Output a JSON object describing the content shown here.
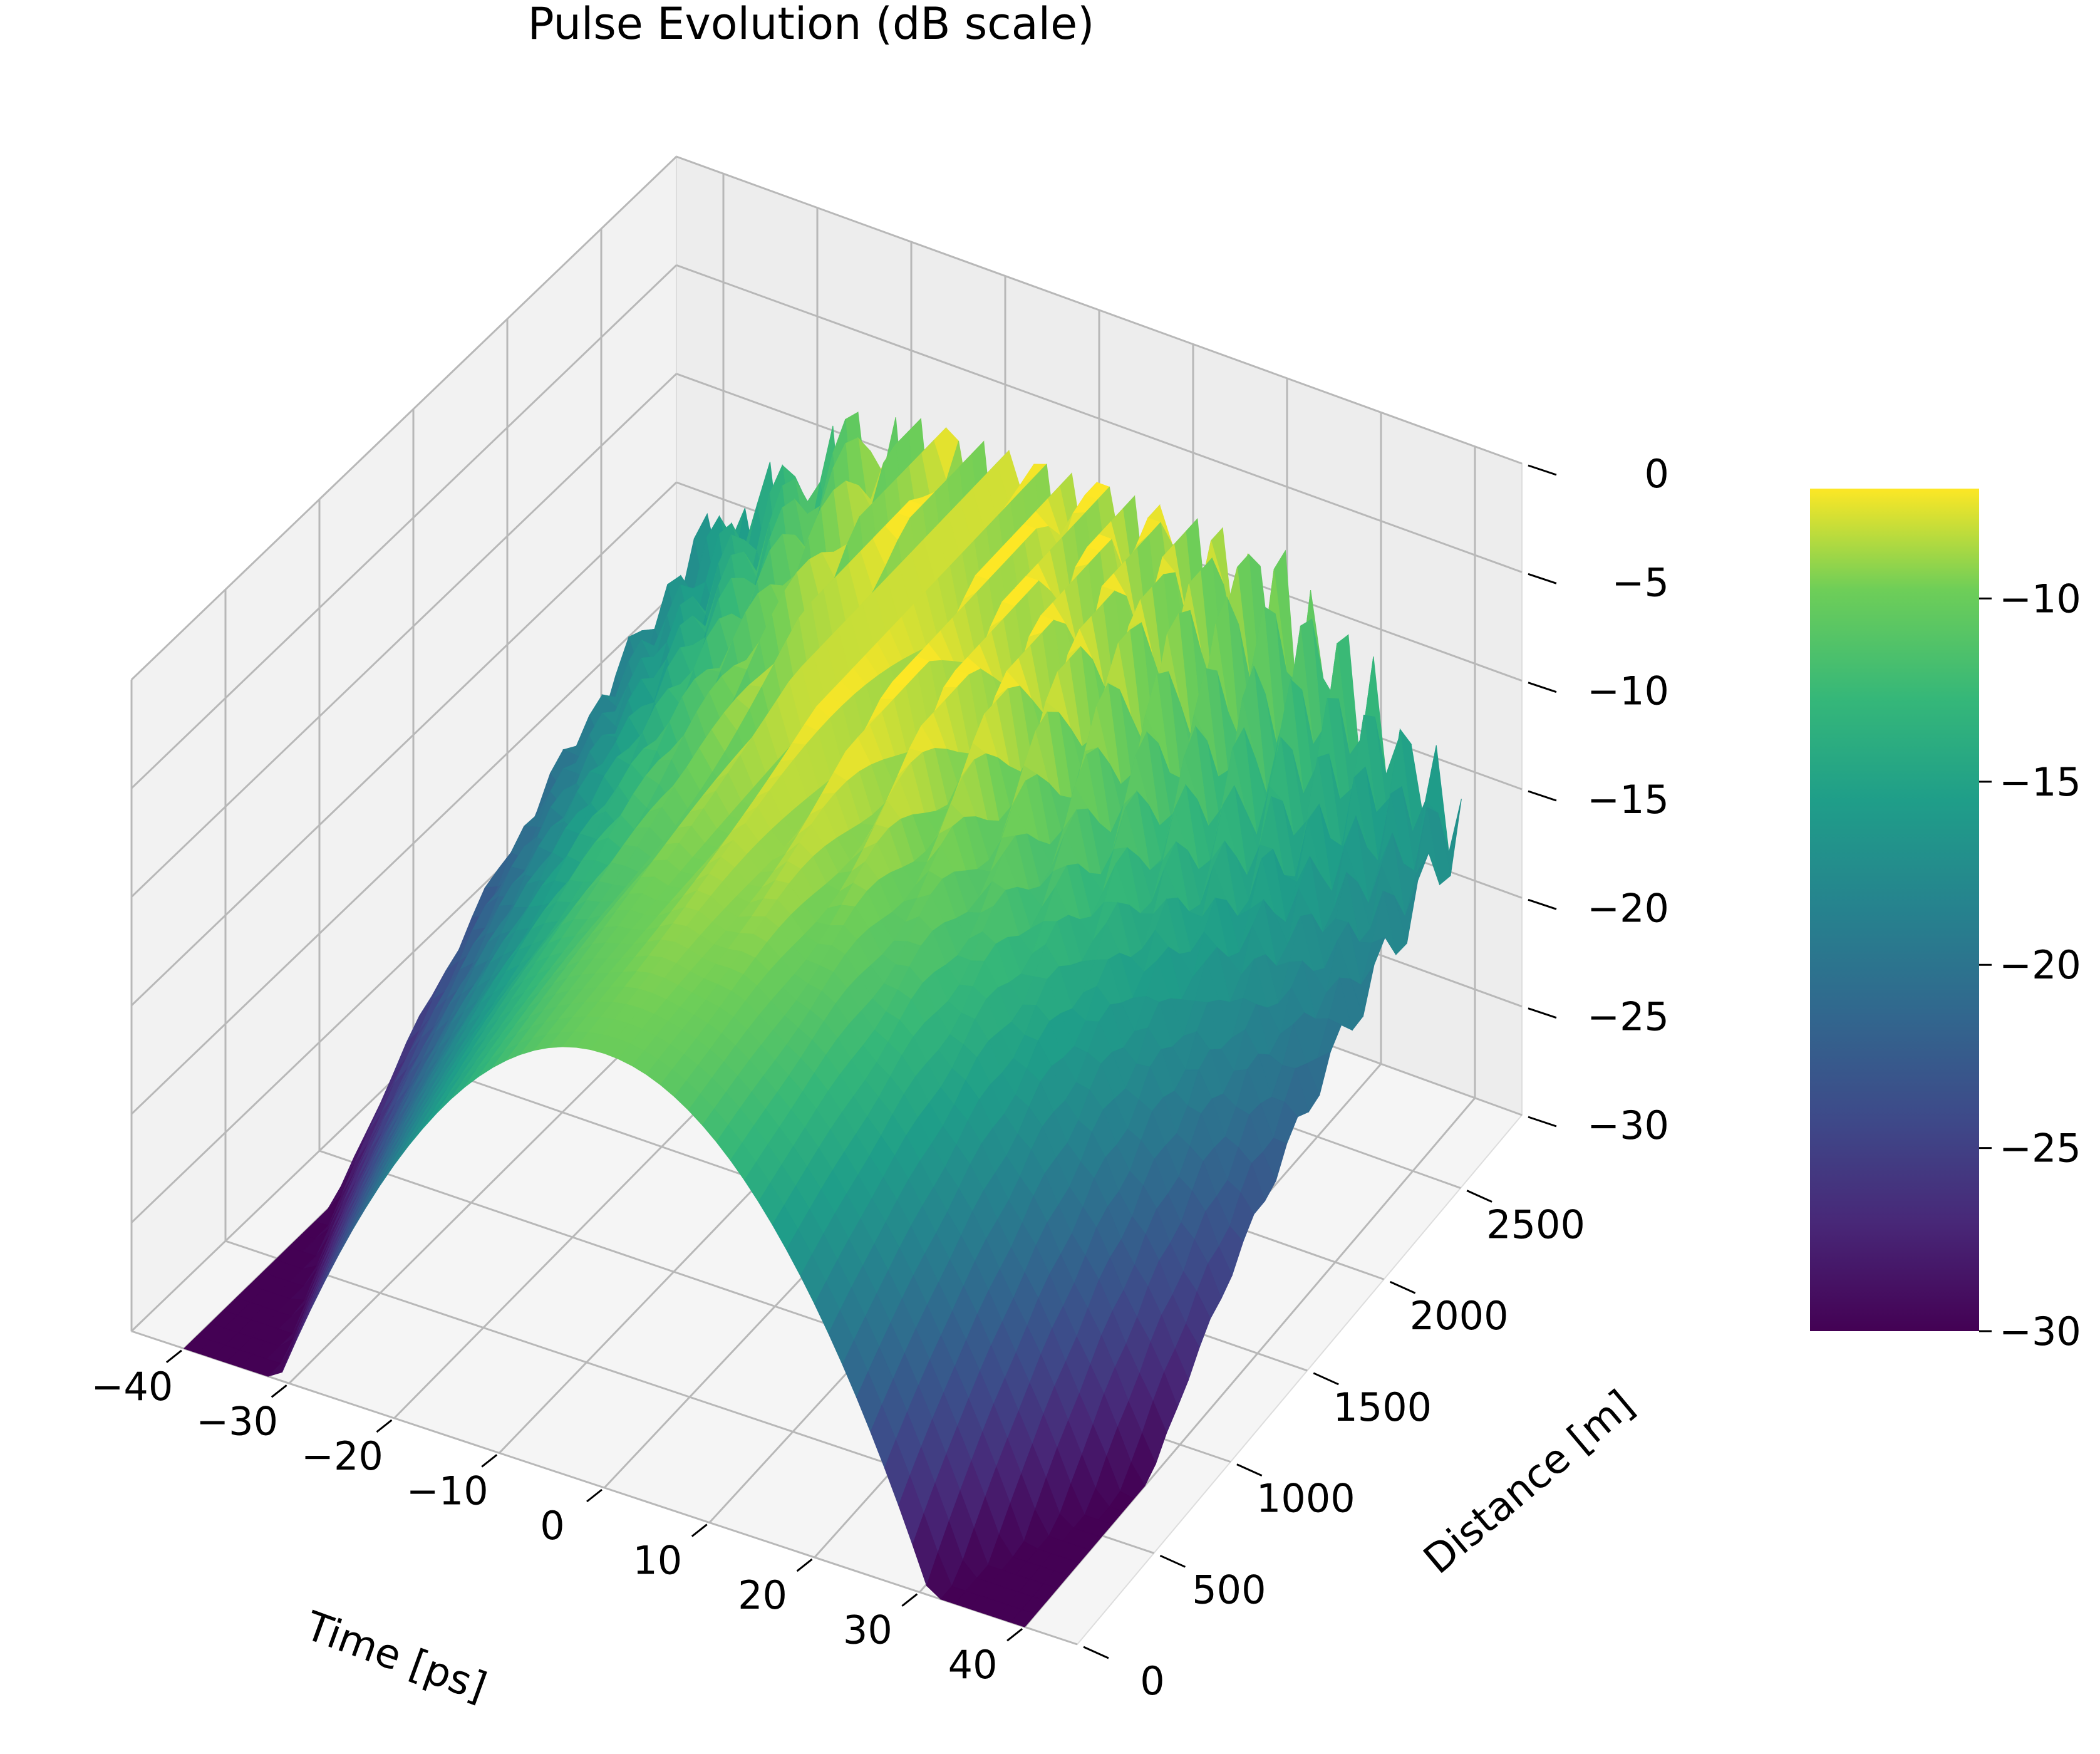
{
  "chart_data": {
    "type": "surface",
    "title": "Pulse Evolution (dB scale)",
    "xlabel": "Time [ps]",
    "ylabel": "Distance [m]",
    "zlabel": "",
    "x_ticks": [
      "−40",
      "−30",
      "−20",
      "−10",
      "0",
      "10",
      "20",
      "30",
      "40"
    ],
    "x_tick_values": [
      -40,
      -30,
      -20,
      -10,
      0,
      10,
      20,
      30,
      40
    ],
    "y_ticks": [
      "0",
      "500",
      "1000",
      "1500",
      "2000",
      "2500"
    ],
    "y_tick_values": [
      0,
      500,
      1000,
      1500,
      2000,
      2500
    ],
    "z_ticks": [
      "0",
      "−5",
      "−10",
      "−15",
      "−20",
      "−25",
      "−30"
    ],
    "z_tick_values": [
      0,
      -5,
      -10,
      -15,
      -20,
      -25,
      -30
    ],
    "xlim": [
      -45,
      45
    ],
    "ylim": [
      0,
      2900
    ],
    "zlim": [
      -30,
      0
    ],
    "clip_floor_db": -30,
    "peak_db": -7,
    "colormap": "viridis",
    "colorbar": {
      "ticks": [
        "−10",
        "−15",
        "−20",
        "−25",
        "−30"
      ],
      "tick_values": [
        -10,
        -15,
        -20,
        -25,
        -30
      ],
      "range": [
        -30,
        -7
      ]
    },
    "description_values": {
      "input_pulse_center_ps": 0,
      "input_peak_db": -10,
      "output_structure": "oscillatory spectral/temporal splitting with peaks near -7 dB"
    },
    "grid": true
  }
}
